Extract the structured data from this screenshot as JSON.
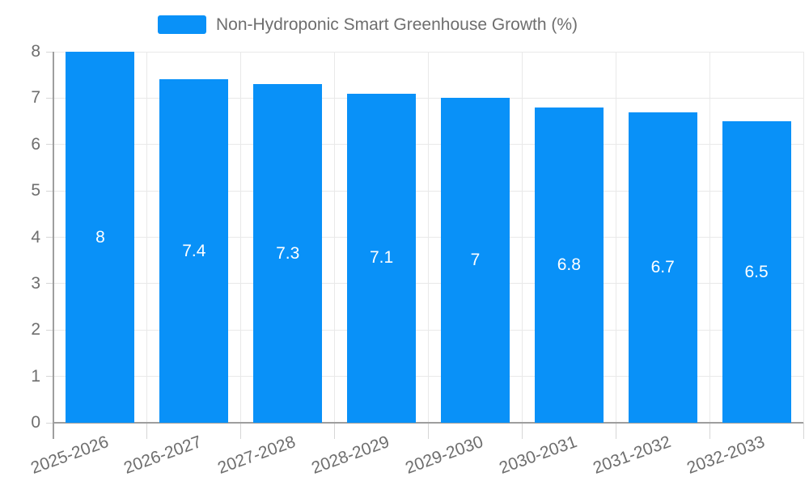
{
  "legend": {
    "label": "Non-Hydroponic Smart Greenhouse Growth (%)"
  },
  "colors": {
    "bar": "#0991f8",
    "grid": "#e9e9e9",
    "axis_line": "#9e9e9e",
    "tick": "#d6d6d6",
    "axis_text": "#6e6e6e",
    "value_text": "#ffffff"
  },
  "chart_data": {
    "type": "bar",
    "title": "",
    "xlabel": "",
    "ylabel": "",
    "series_name": "Non-Hydroponic Smart Greenhouse Growth (%)",
    "categories": [
      "2025-2026",
      "2026-2027",
      "2027-2028",
      "2028-2029",
      "2029-2030",
      "2030-2031",
      "2031-2032",
      "2032-2033"
    ],
    "values": [
      8,
      7.4,
      7.3,
      7.1,
      7,
      6.8,
      6.7,
      6.5
    ],
    "value_labels": [
      "8",
      "7.4",
      "7.3",
      "7.1",
      "7",
      "6.8",
      "6.7",
      "6.5"
    ],
    "ylim": [
      0,
      8
    ],
    "yticks": [
      0,
      1,
      2,
      3,
      4,
      5,
      6,
      7,
      8
    ],
    "grid": true,
    "legend_position": "top-center",
    "x_label_rotation_deg": -20
  }
}
